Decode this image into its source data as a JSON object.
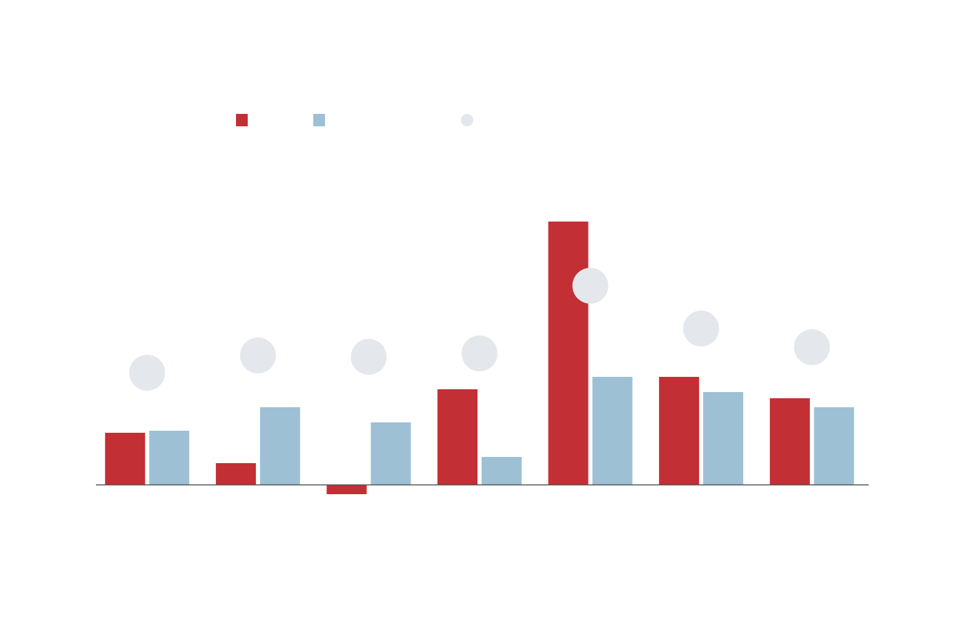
{
  "chart_data": {
    "type": "bar",
    "categories": [
      null,
      null,
      null,
      null,
      null,
      null,
      null
    ],
    "series": [
      {
        "type": "bar",
        "color": "#c22f35",
        "values": [
          7.5,
          3.1,
          -1.4,
          13.8,
          38.1,
          15.6,
          12.5
        ]
      },
      {
        "type": "bar",
        "color": "#9dc0d5",
        "values": [
          7.8,
          11.2,
          9.0,
          4.0,
          15.6,
          13.4,
          11.2
        ]
      },
      {
        "type": "dot",
        "color": "#e4e7ec",
        "values": [
          16.2,
          18.7,
          18.5,
          19.0,
          28.8,
          22.6,
          19.9
        ]
      }
    ],
    "ylim": [
      -10,
      50
    ]
  }
}
